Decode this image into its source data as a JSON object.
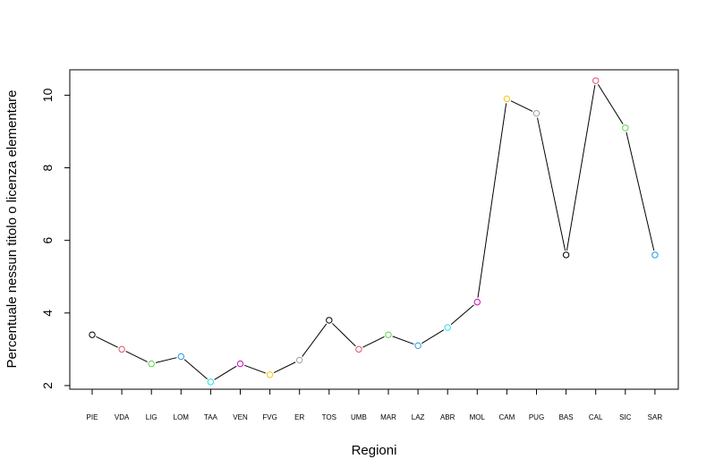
{
  "chart_data": {
    "type": "line",
    "title": "",
    "xlabel": "Regioni",
    "ylabel": "Percentuale nessun titolo o licenza elementare",
    "categories": [
      "PIE",
      "VDA",
      "LIG",
      "LOM",
      "TAA",
      "VEN",
      "FVG",
      "ER",
      "TOS",
      "UMB",
      "MAR",
      "LAZ",
      "ABR",
      "MOL",
      "CAM",
      "PUG",
      "BAS",
      "CAL",
      "SIC",
      "SAR"
    ],
    "values": [
      3.4,
      3.0,
      2.6,
      2.8,
      2.1,
      2.6,
      2.3,
      2.7,
      3.8,
      3.0,
      3.4,
      3.1,
      3.6,
      4.3,
      9.9,
      9.5,
      5.6,
      10.4,
      9.1,
      5.6
    ],
    "point_colors": [
      "#000000",
      "#DF536B",
      "#61D04F",
      "#2297E6",
      "#28E2E5",
      "#CD0BBC",
      "#F5C710",
      "#9E9E9E",
      "#000000",
      "#DF536B",
      "#61D04F",
      "#2297E6",
      "#28E2E5",
      "#CD0BBC",
      "#F5C710",
      "#9E9E9E",
      "#000000",
      "#DF536B",
      "#61D04F",
      "#2297E6"
    ],
    "yticks": [
      "2",
      "4",
      "6",
      "8",
      "10"
    ],
    "ylim": [
      1.9,
      10.7
    ],
    "grid": false,
    "legend": "none"
  }
}
